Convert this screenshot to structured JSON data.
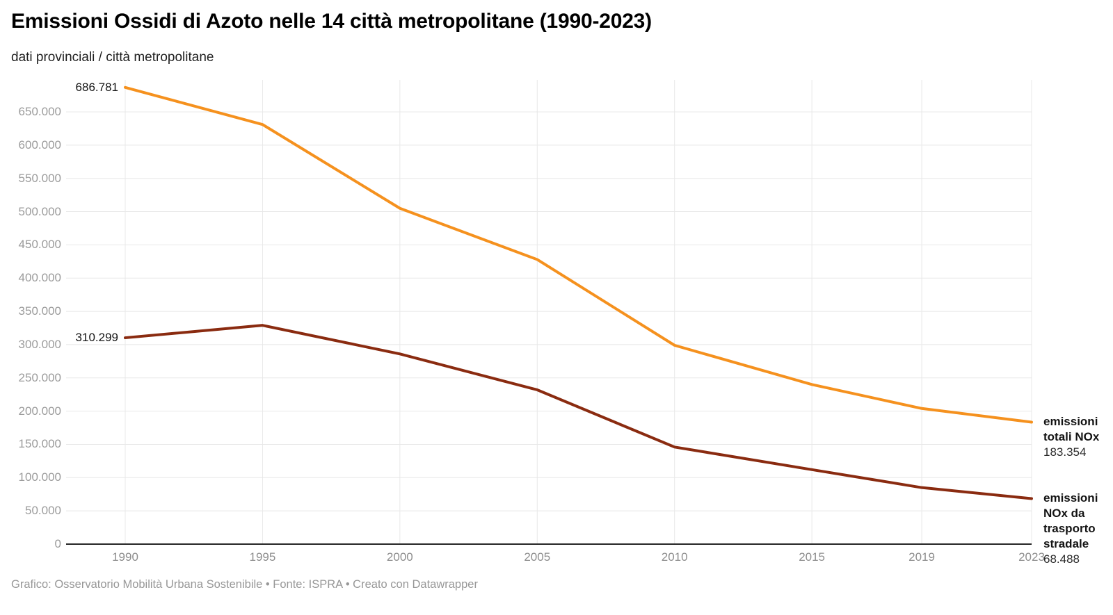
{
  "header": {
    "title": "Emissioni Ossidi di Azoto nelle 14 città metropolitane (1990-2023)",
    "subtitle": "dati provinciali / città metropolitane"
  },
  "footer": {
    "credit": "Grafico: Osservatorio Mobilità Urbana Sostenibile • Fonte: ISPRA • Creato con Datawrapper"
  },
  "colors": {
    "series_total": "#F5911E",
    "series_road": "#8A2B10",
    "grid": "#E8E8E8",
    "axis": "#262626",
    "y_tick_label": "#9B9B9B",
    "x_tick_label": "#8E8E8E"
  },
  "chart_data": {
    "type": "line",
    "title": "Emissioni Ossidi di Azoto nelle 14 città metropolitane (1990-2023)",
    "subtitle": "dati provinciali / città metropolitane",
    "xlabel": "",
    "ylabel": "",
    "x": [
      1990,
      1995,
      2000,
      2005,
      2010,
      2015,
      2019,
      2023
    ],
    "x_tick_labels": [
      "1990",
      "1995",
      "2000",
      "2005",
      "2010",
      "2015",
      "2019",
      "2023"
    ],
    "y_tick_values": [
      0,
      50000,
      100000,
      150000,
      200000,
      250000,
      300000,
      350000,
      400000,
      450000,
      500000,
      550000,
      600000,
      650000
    ],
    "y_tick_labels": [
      "0",
      "50.000",
      "100.000",
      "150.000",
      "200.000",
      "250.000",
      "300.000",
      "350.000",
      "400.000",
      "450.000",
      "500.000",
      "550.000",
      "600.000",
      "650.000"
    ],
    "ylim": [
      0,
      700000
    ],
    "grid": "on",
    "legend_position": "right-of-line-ends",
    "series": [
      {
        "name": "emissioni totali NOx",
        "color": "#F5911E",
        "values": [
          686781,
          631000,
          505000,
          428000,
          299000,
          240000,
          204000,
          183354
        ],
        "start_label": "686.781",
        "end_label": "183.354"
      },
      {
        "name": "emissioni NOx da trasporto stradale",
        "color": "#8A2B10",
        "values": [
          310299,
          329000,
          286000,
          232000,
          146000,
          112000,
          85000,
          68488
        ],
        "start_label": "310.299",
        "end_label": "68.488"
      }
    ]
  }
}
